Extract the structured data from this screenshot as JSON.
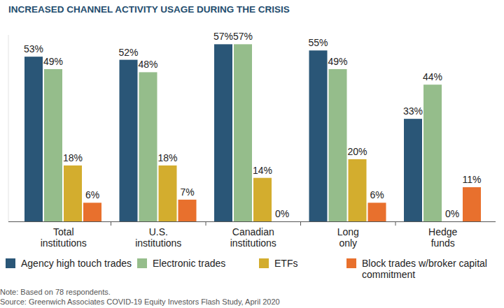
{
  "chart_data": {
    "type": "bar",
    "title": "INCREASED CHANNEL ACTIVITY USAGE DURING THE CRISIS",
    "categories": [
      "Total institutions",
      "U.S. institutions",
      "Canadian institutions",
      "Long only",
      "Hedge funds"
    ],
    "series": [
      {
        "name": "Agency high touch trades",
        "color": "#2a5677",
        "values": [
          53,
          52,
          57,
          55,
          33
        ],
        "value_labels": [
          "53%",
          "52%",
          "57%",
          "55%",
          "33%"
        ]
      },
      {
        "name": "Electronic trades",
        "color": "#95bd8b",
        "values": [
          49,
          48,
          57,
          49,
          44
        ],
        "value_labels": [
          "49%",
          "48%",
          "57%",
          "49%",
          "44%"
        ]
      },
      {
        "name": "ETFs",
        "color": "#d3ad2e",
        "values": [
          18,
          18,
          14,
          20,
          0
        ],
        "value_labels": [
          "18%",
          "18%",
          "14%",
          "20%",
          "0%"
        ]
      },
      {
        "name": "Block trades w/broker capital commitment",
        "color": "#e8702d",
        "values": [
          6,
          7,
          0,
          6,
          11
        ],
        "value_labels": [
          "6%",
          "7%",
          "0%",
          "6%",
          "11%"
        ]
      }
    ],
    "ylim": [
      0,
      60
    ],
    "data_labels": true,
    "tick_labels": "x",
    "legend": "bottom",
    "annotations": [
      "Note: Based on 78 respondents.",
      "Source: Greenwich Associates COVID-19 Equity Investors Flash Study, April 2020"
    ]
  }
}
